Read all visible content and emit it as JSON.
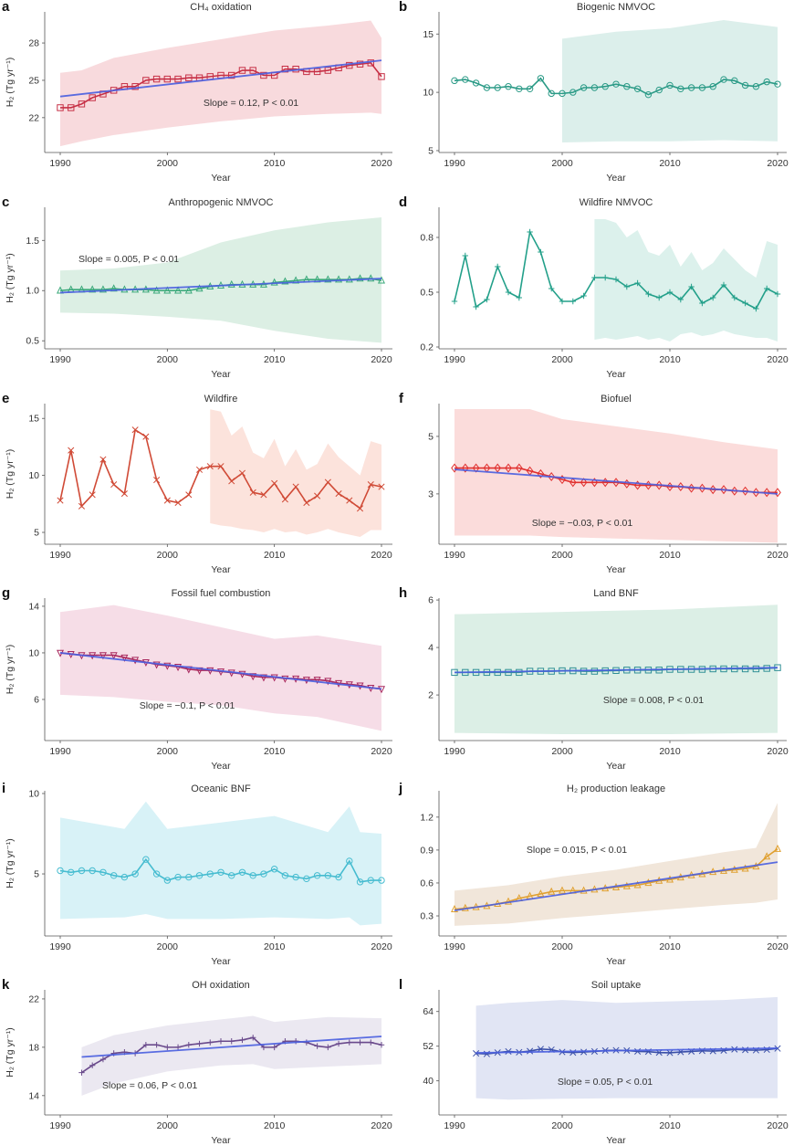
{
  "chart_data": [
    {
      "panel": "a",
      "type": "line",
      "title": "CH₄ oxidation",
      "xlabel": "Year",
      "ylabel": "H₂ (Tg yr⁻¹)",
      "ylim": [
        19.2,
        30.5
      ],
      "yticks": [
        22,
        25,
        28
      ],
      "xticks": [
        1990,
        2000,
        2010,
        2020
      ],
      "color": "#c62f45",
      "band_color": "#f8dadd",
      "marker": "square",
      "start_year": 1990,
      "values": [
        22.8,
        22.8,
        23.1,
        23.6,
        23.9,
        24.2,
        24.5,
        24.5,
        25.0,
        25.1,
        25.1,
        25.1,
        25.2,
        25.2,
        25.3,
        25.4,
        25.4,
        25.8,
        25.8,
        25.4,
        25.4,
        25.9,
        25.9,
        25.7,
        25.7,
        25.8,
        26.0,
        26.2,
        26.3,
        26.4,
        25.3
      ],
      "band": {
        "years": [
          1990,
          1992,
          1995,
          2000,
          2005,
          2010,
          2015,
          2019,
          2020
        ],
        "lower": [
          19.7,
          20.1,
          20.6,
          21.2,
          21.7,
          22.1,
          22.3,
          22.4,
          22.3
        ],
        "upper": [
          25.6,
          25.8,
          26.8,
          27.6,
          28.3,
          29.0,
          29.4,
          29.8,
          28.4
        ]
      },
      "trend": {
        "years": [
          1990,
          2020
        ],
        "values": [
          23.7,
          26.6
        ]
      },
      "slope_text": "Slope = 0.12, P < 0.01"
    },
    {
      "panel": "b",
      "type": "line",
      "title": "Biogenic NMVOC",
      "xlabel": "Year",
      "ylabel": "",
      "ylim": [
        4.84,
        16.9
      ],
      "yticks": [
        5,
        10,
        15
      ],
      "xticks": [
        1990,
        2000,
        2010,
        2020
      ],
      "color": "#2a9a86",
      "band_color": "#dcefeb",
      "marker": "circle",
      "start_year": 1990,
      "values": [
        11.0,
        11.1,
        10.8,
        10.4,
        10.4,
        10.5,
        10.3,
        10.3,
        11.2,
        9.9,
        9.9,
        10.0,
        10.4,
        10.4,
        10.5,
        10.7,
        10.5,
        10.3,
        9.8,
        10.2,
        10.6,
        10.3,
        10.4,
        10.4,
        10.5,
        11.1,
        11.0,
        10.6,
        10.5,
        10.9,
        10.7
      ],
      "band": {
        "years": [
          2000,
          2005,
          2010,
          2015,
          2020
        ],
        "lower": [
          5.7,
          5.8,
          5.8,
          5.9,
          5.8
        ],
        "upper": [
          14.6,
          15.2,
          15.5,
          16.2,
          15.6
        ]
      },
      "trend": null,
      "slope_text": ""
    },
    {
      "panel": "c",
      "type": "line",
      "title": "Anthropogenic NMVOC",
      "xlabel": "Year",
      "ylabel": "H₂ (Tg yr⁻¹)",
      "ylim": [
        0.42,
        1.83
      ],
      "yticks": [
        0.5,
        1.0,
        1.5
      ],
      "ytick_labels": [
        "0.5",
        "1.0",
        "1.5"
      ],
      "xticks": [
        1990,
        2000,
        2010,
        2020
      ],
      "color": "#3aa87a",
      "band_color": "#dcefe4",
      "marker": "triangle",
      "start_year": 1990,
      "values": [
        1.0,
        1.01,
        1.01,
        1.01,
        1.01,
        1.02,
        1.01,
        1.01,
        1.01,
        1.0,
        1.0,
        1.0,
        1.0,
        1.02,
        1.04,
        1.05,
        1.06,
        1.06,
        1.06,
        1.06,
        1.08,
        1.09,
        1.1,
        1.11,
        1.11,
        1.11,
        1.11,
        1.11,
        1.12,
        1.12,
        1.1
      ],
      "band": {
        "years": [
          1990,
          1995,
          2000,
          2005,
          2010,
          2015,
          2020
        ],
        "lower": [
          0.78,
          0.77,
          0.74,
          0.7,
          0.6,
          0.52,
          0.48
        ],
        "upper": [
          1.2,
          1.22,
          1.28,
          1.48,
          1.6,
          1.68,
          1.73
        ]
      },
      "trend": {
        "years": [
          1990,
          2020
        ],
        "values": [
          0.98,
          1.12
        ]
      },
      "slope_text": "Slope = 0.005, P < 0.01"
    },
    {
      "panel": "d",
      "type": "line",
      "title": "Wildfire NMVOC",
      "xlabel": "Year",
      "ylabel": "",
      "ylim": [
        0.19,
        0.965
      ],
      "yticks": [
        0.2,
        0.5,
        0.8
      ],
      "ytick_labels": [
        "0.2",
        "0.5",
        "0.8"
      ],
      "xticks": [
        1990,
        2000,
        2010,
        2020
      ],
      "color": "#23a08a",
      "band_color": "#dcf1ec",
      "marker": "plus",
      "start_year": 1990,
      "values": [
        0.45,
        0.7,
        0.42,
        0.46,
        0.64,
        0.5,
        0.47,
        0.83,
        0.72,
        0.52,
        0.45,
        0.45,
        0.48,
        0.58,
        0.58,
        0.57,
        0.53,
        0.55,
        0.49,
        0.47,
        0.5,
        0.46,
        0.53,
        0.44,
        0.47,
        0.54,
        0.47,
        0.44,
        0.41,
        0.52,
        0.49
      ],
      "band": {
        "years": [
          2003,
          2004,
          2005,
          2006,
          2007,
          2008,
          2009,
          2010,
          2011,
          2012,
          2013,
          2014,
          2015,
          2016,
          2017,
          2018,
          2019,
          2020
        ],
        "lower": [
          0.24,
          0.25,
          0.24,
          0.25,
          0.26,
          0.24,
          0.25,
          0.23,
          0.27,
          0.28,
          0.26,
          0.27,
          0.29,
          0.27,
          0.26,
          0.25,
          0.25,
          0.23
        ],
        "upper": [
          0.9,
          0.9,
          0.88,
          0.8,
          0.84,
          0.72,
          0.7,
          0.76,
          0.64,
          0.72,
          0.62,
          0.66,
          0.74,
          0.68,
          0.62,
          0.58,
          0.78,
          0.76
        ]
      },
      "trend": null,
      "slope_text": ""
    },
    {
      "panel": "e",
      "type": "line",
      "title": "Wildfire",
      "xlabel": "Year",
      "ylabel": "H₂ (Tg yr⁻¹)",
      "ylim": [
        3.96,
        16.3
      ],
      "yticks": [
        5,
        10,
        15
      ],
      "xticks": [
        1990,
        2000,
        2010,
        2020
      ],
      "color": "#d04a36",
      "band_color": "#fce3dc",
      "marker": "x",
      "start_year": 1990,
      "values": [
        7.8,
        12.2,
        7.3,
        8.3,
        11.4,
        9.2,
        8.4,
        14.0,
        13.4,
        9.6,
        7.8,
        7.6,
        8.3,
        10.5,
        10.8,
        10.8,
        9.5,
        10.2,
        8.5,
        8.3,
        9.3,
        7.9,
        9.0,
        7.6,
        8.2,
        9.4,
        8.4,
        7.8,
        7.1,
        9.2,
        9.0
      ],
      "band": {
        "years": [
          2004,
          2005,
          2006,
          2007,
          2008,
          2009,
          2010,
          2011,
          2012,
          2013,
          2014,
          2015,
          2016,
          2017,
          2018,
          2019,
          2020
        ],
        "lower": [
          5.8,
          5.6,
          5.5,
          5.3,
          5.2,
          5.0,
          5.3,
          5.0,
          5.1,
          4.8,
          5.0,
          5.3,
          5.0,
          4.8,
          4.6,
          5.2,
          5.2
        ],
        "upper": [
          15.8,
          15.6,
          13.5,
          14.3,
          12.0,
          11.5,
          13.2,
          10.8,
          12.3,
          10.5,
          11.0,
          12.8,
          11.6,
          10.8,
          10.0,
          13.0,
          12.7
        ]
      },
      "trend": null,
      "slope_text": ""
    },
    {
      "panel": "f",
      "type": "line",
      "title": "Biofuel",
      "xlabel": "Year",
      "ylabel": "",
      "ylim": [
        1.25,
        6.14
      ],
      "yticks": [
        3,
        5
      ],
      "xticks": [
        1990,
        2000,
        2010,
        2020
      ],
      "color": "#e0302f",
      "band_color": "#fbdcdb",
      "marker": "diamond",
      "start_year": 1990,
      "values": [
        3.9,
        3.9,
        3.9,
        3.9,
        3.9,
        3.9,
        3.9,
        3.8,
        3.7,
        3.6,
        3.5,
        3.4,
        3.4,
        3.4,
        3.4,
        3.4,
        3.35,
        3.3,
        3.3,
        3.3,
        3.25,
        3.25,
        3.2,
        3.2,
        3.15,
        3.15,
        3.1,
        3.1,
        3.05,
        3.05,
        3.05
      ],
      "band": {
        "years": [
          1990,
          1997,
          2000,
          2005,
          2010,
          2015,
          2020
        ],
        "lower": [
          1.55,
          1.55,
          1.5,
          1.45,
          1.4,
          1.35,
          1.3
        ],
        "upper": [
          5.95,
          5.95,
          5.6,
          5.35,
          5.1,
          4.8,
          4.55
        ]
      },
      "trend": {
        "years": [
          1990,
          2020
        ],
        "values": [
          3.85,
          3.0
        ]
      },
      "slope_text": "Slope = −0.03, P < 0.01"
    },
    {
      "panel": "g",
      "type": "line",
      "title": "Fossil fuel combustion",
      "xlabel": "Year",
      "ylabel": "H₂ (Tg yr⁻¹)",
      "ylim": [
        2.47,
        14.7
      ],
      "yticks": [
        6,
        10,
        14
      ],
      "xticks": [
        1990,
        2000,
        2010,
        2020
      ],
      "color": "#a8285e",
      "band_color": "#f6dde7",
      "marker": "triangle-down",
      "start_year": 1990,
      "values": [
        10.0,
        9.9,
        9.8,
        9.8,
        9.8,
        9.8,
        9.6,
        9.4,
        9.2,
        9.0,
        8.9,
        8.8,
        8.6,
        8.5,
        8.5,
        8.4,
        8.3,
        8.2,
        8.0,
        7.9,
        7.9,
        7.8,
        7.8,
        7.7,
        7.7,
        7.6,
        7.4,
        7.3,
        7.2,
        7.0,
        6.9
      ],
      "band": {
        "years": [
          1990,
          1995,
          2000,
          2005,
          2010,
          2014,
          2020
        ],
        "lower": [
          6.4,
          6.2,
          5.8,
          5.5,
          4.8,
          4.5,
          3.3
        ],
        "upper": [
          13.5,
          14.1,
          13.2,
          12.2,
          11.2,
          11.5,
          10.6
        ]
      },
      "trend": {
        "years": [
          1990,
          2020
        ],
        "values": [
          10.0,
          6.9
        ]
      },
      "slope_text": "Slope = −0.1, P < 0.01"
    },
    {
      "panel": "h",
      "type": "line",
      "title": "Land BNF",
      "xlabel": "Year",
      "ylabel": "",
      "ylim": [
        0.08,
        6.08
      ],
      "yticks": [
        2,
        4,
        6
      ],
      "xticks": [
        1990,
        2000,
        2010,
        2020
      ],
      "color": "#2f8f95",
      "band_color": "#dcefe6",
      "marker": "square",
      "start_year": 1990,
      "values": [
        2.95,
        2.95,
        2.95,
        2.95,
        2.95,
        2.95,
        2.95,
        3.0,
        3.0,
        3.0,
        3.02,
        3.02,
        3.0,
        3.0,
        3.02,
        3.03,
        3.05,
        3.05,
        3.05,
        3.05,
        3.08,
        3.08,
        3.08,
        3.08,
        3.1,
        3.1,
        3.1,
        3.1,
        3.1,
        3.12,
        3.15
      ],
      "band": {
        "years": [
          1990,
          2000,
          2010,
          2020
        ],
        "lower": [
          0.4,
          0.35,
          0.35,
          0.4
        ],
        "upper": [
          5.4,
          5.5,
          5.6,
          5.8
        ]
      },
      "trend": {
        "years": [
          1990,
          2020
        ],
        "values": [
          2.95,
          3.15
        ]
      },
      "slope_text": "Slope = 0.008, P < 0.01"
    },
    {
      "panel": "i",
      "type": "line",
      "title": "Oceanic BNF",
      "xlabel": "Year",
      "ylabel": "H₂ (Tg yr⁻¹)",
      "ylim": [
        1.14,
        10.17
      ],
      "yticks": [
        5,
        10
      ],
      "xticks": [
        1990,
        2000,
        2010,
        2020
      ],
      "color": "#46bcd0",
      "band_color": "#d8f2f7",
      "marker": "circle",
      "start_year": 1990,
      "values": [
        5.2,
        5.1,
        5.2,
        5.2,
        5.1,
        4.9,
        4.8,
        5.0,
        5.9,
        5.0,
        4.6,
        4.8,
        4.8,
        4.9,
        5.0,
        5.1,
        4.9,
        5.1,
        4.9,
        5.0,
        5.3,
        4.9,
        4.8,
        4.7,
        4.9,
        4.9,
        4.8,
        5.8,
        4.5,
        4.6,
        4.6
      ],
      "band": {
        "years": [
          1990,
          1996,
          1998,
          2000,
          2005,
          2010,
          2015,
          2017,
          2018,
          2020
        ],
        "lower": [
          2.2,
          2.3,
          2.5,
          2.2,
          2.2,
          2.3,
          2.2,
          2.3,
          1.8,
          1.9
        ],
        "upper": [
          8.5,
          7.8,
          9.5,
          7.8,
          8.2,
          8.6,
          7.6,
          9.2,
          7.6,
          7.5
        ]
      },
      "trend": null,
      "slope_text": ""
    },
    {
      "panel": "j",
      "type": "line",
      "title": "H₂ production leakage",
      "xlabel": "Year",
      "ylabel": "",
      "ylim": [
        0.117,
        1.44
      ],
      "yticks": [
        0.3,
        0.6,
        0.9,
        1.2
      ],
      "ytick_labels": [
        "0.3",
        "0.6",
        "0.9",
        "1.2"
      ],
      "xticks": [
        1990,
        2000,
        2010,
        2020
      ],
      "color": "#e0a030",
      "band_color": "#f1e6da",
      "marker": "triangle",
      "start_year": 1990,
      "values": [
        0.36,
        0.37,
        0.38,
        0.39,
        0.41,
        0.43,
        0.46,
        0.48,
        0.5,
        0.52,
        0.53,
        0.53,
        0.53,
        0.54,
        0.55,
        0.56,
        0.57,
        0.58,
        0.6,
        0.62,
        0.63,
        0.65,
        0.67,
        0.68,
        0.7,
        0.71,
        0.72,
        0.73,
        0.75,
        0.84,
        0.91
      ],
      "band": {
        "years": [
          1990,
          1995,
          2000,
          2005,
          2010,
          2015,
          2018,
          2020
        ],
        "lower": [
          0.21,
          0.23,
          0.28,
          0.32,
          0.36,
          0.4,
          0.42,
          0.45
        ],
        "upper": [
          0.53,
          0.58,
          0.66,
          0.72,
          0.8,
          0.88,
          0.92,
          1.33
        ]
      },
      "trend": {
        "years": [
          1990,
          2020
        ],
        "values": [
          0.35,
          0.79
        ]
      },
      "slope_text": "Slope = 0.015, P < 0.01"
    },
    {
      "panel": "k",
      "type": "line",
      "title": "OH oxidation",
      "xlabel": "Year",
      "ylabel": "H₂ (Tg yr⁻¹)",
      "ylim": [
        12.4,
        22.75
      ],
      "yticks": [
        14,
        18,
        22
      ],
      "xticks": [
        1990,
        2000,
        2010,
        2020
      ],
      "color": "#6a4a8c",
      "band_color": "#ebe8f1",
      "marker": "plus",
      "start_year": 1992,
      "values": [
        15.9,
        16.5,
        17.0,
        17.5,
        17.6,
        17.5,
        18.2,
        18.2,
        18.0,
        18.0,
        18.2,
        18.3,
        18.4,
        18.5,
        18.5,
        18.6,
        18.8,
        18.0,
        18.0,
        18.5,
        18.5,
        18.4,
        18.1,
        18.0,
        18.3,
        18.4,
        18.4,
        18.4,
        18.2
      ],
      "band": {
        "years": [
          1992,
          1995,
          2000,
          2005,
          2008,
          2010,
          2015,
          2020
        ],
        "lower": [
          14.0,
          15.0,
          16.0,
          16.5,
          16.6,
          16.2,
          16.4,
          16.6
        ],
        "upper": [
          18.0,
          19.0,
          19.8,
          20.3,
          20.6,
          20.1,
          20.5,
          20.4
        ]
      },
      "trend": {
        "years": [
          1992,
          2020
        ],
        "values": [
          17.2,
          18.9
        ]
      },
      "slope_text": "Slope = 0.06, P < 0.01"
    },
    {
      "panel": "l",
      "type": "line",
      "title": "Soil uptake",
      "xlabel": "Year",
      "ylabel": "",
      "ylim": [
        28.2,
        71.5
      ],
      "yticks": [
        40,
        52,
        64
      ],
      "xticks": [
        1990,
        2000,
        2010,
        2020
      ],
      "color": "#3a4fa8",
      "band_color": "#e1e5f4",
      "marker": "x",
      "start_year": 1992,
      "values": [
        49.5,
        49.3,
        49.8,
        50.2,
        49.9,
        50.3,
        51.0,
        50.8,
        50.0,
        49.8,
        50.0,
        50.2,
        50.5,
        50.6,
        50.5,
        50.2,
        50.1,
        49.8,
        49.7,
        50.0,
        50.2,
        50.4,
        50.3,
        50.5,
        50.9,
        50.7,
        50.6,
        50.8,
        51.2
      ],
      "band": {
        "years": [
          1992,
          1995,
          2000,
          2005,
          2010,
          2015,
          2020
        ],
        "lower": [
          34.0,
          33.5,
          33.8,
          34.0,
          34.0,
          34.0,
          34.0
        ],
        "upper": [
          66.0,
          67.0,
          68.0,
          67.0,
          67.5,
          68.0,
          69.0
        ]
      },
      "trend": {
        "years": [
          1992,
          2020
        ],
        "values": [
          49.7,
          51.3
        ]
      },
      "slope_text": "Slope = 0.05, P < 0.01"
    }
  ],
  "trend_color": "#4a5fe0"
}
